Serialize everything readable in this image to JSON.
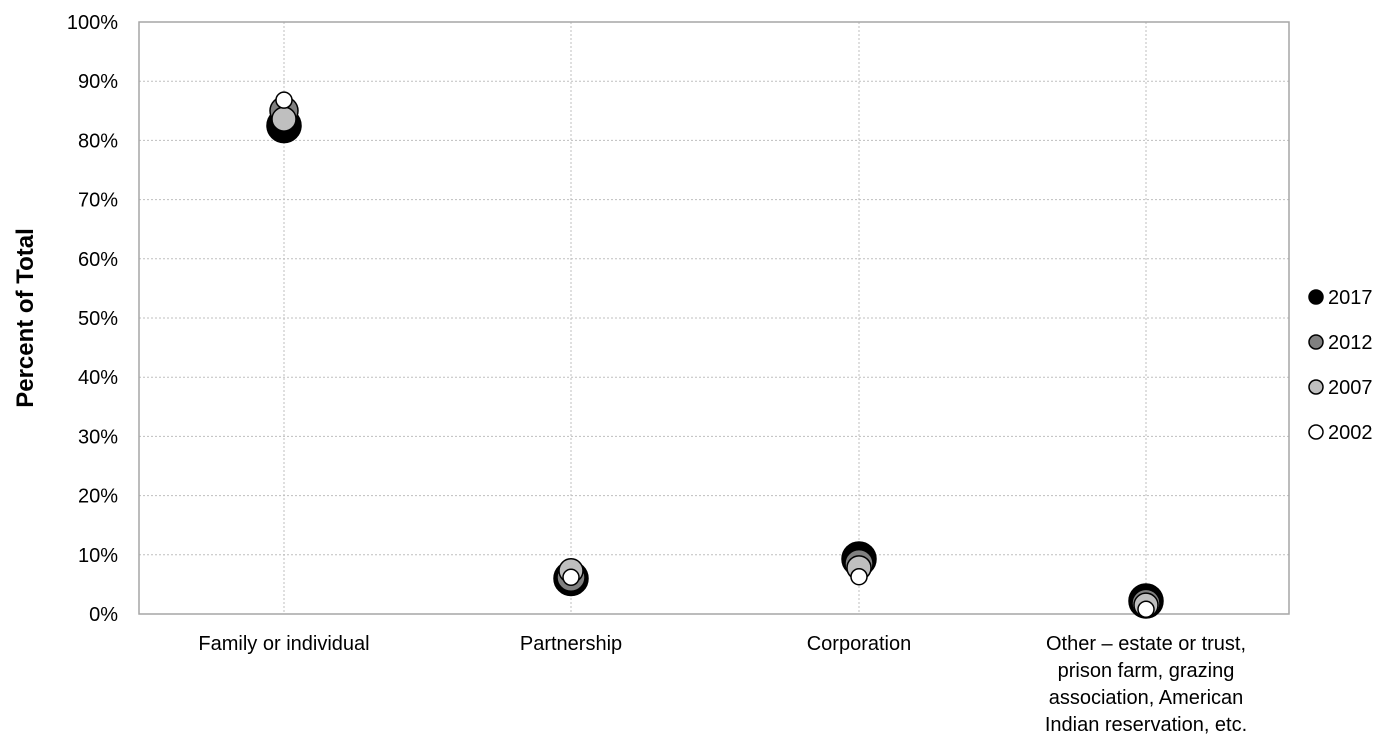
{
  "chart_data": {
    "type": "scatter",
    "title": "",
    "xlabel": "",
    "ylabel": "Percent of Total",
    "ylim": [
      0,
      100
    ],
    "y_ticks": [
      "0%",
      "10%",
      "20%",
      "30%",
      "40%",
      "50%",
      "60%",
      "70%",
      "80%",
      "90%",
      "100%"
    ],
    "categories": [
      [
        "Family or individual"
      ],
      [
        "Partnership"
      ],
      [
        "Corporation"
      ],
      [
        "Other – estate or trust,",
        "prison farm, grazing",
        "association, American",
        "Indian reservation, etc."
      ]
    ],
    "grid": true,
    "legend_position": "right",
    "series": [
      {
        "name": "2017",
        "values": [
          82.5,
          6.0,
          9.3,
          2.2
        ],
        "color": "#000000"
      },
      {
        "name": "2012",
        "values": [
          85.0,
          6.2,
          8.5,
          1.8
        ],
        "color": "#808080"
      },
      {
        "name": "2007",
        "values": [
          83.6,
          7.3,
          7.8,
          1.5
        ],
        "color": "#bfbfbf"
      },
      {
        "name": "2002",
        "values": [
          86.8,
          6.2,
          6.3,
          0.8
        ],
        "color": "#ffffff"
      }
    ]
  }
}
